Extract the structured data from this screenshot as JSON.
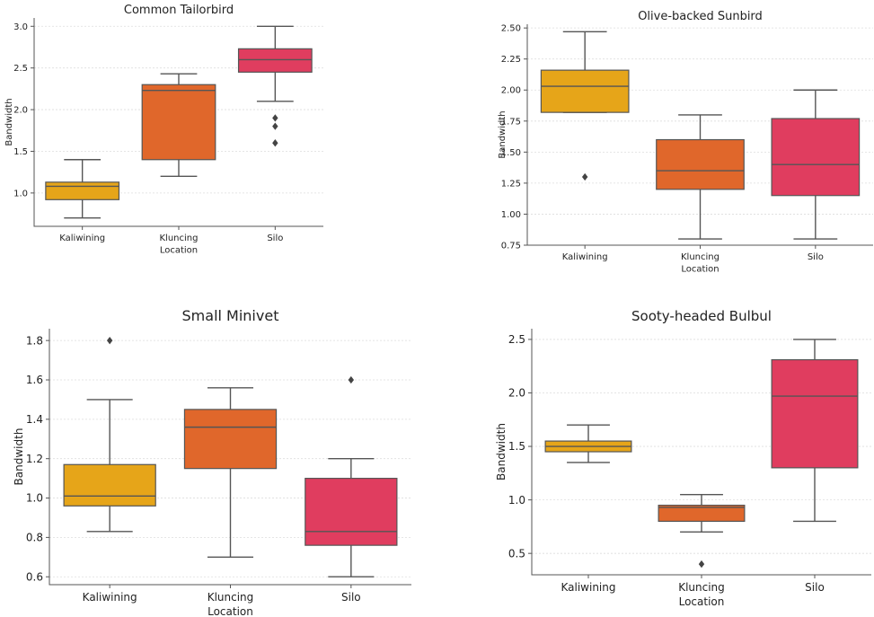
{
  "figure": {
    "palette": {
      "Kaliwining": "#E6A519",
      "Kluncing": "#E0672B",
      "Silo": "#E03D5F"
    }
  },
  "chart_data": [
    {
      "type": "box",
      "title": "Common Tailorbird",
      "xlabel": "Location",
      "ylabel": "Bandwidth",
      "ylim": [
        0.6,
        3.1
      ],
      "yticks": [
        "1.0",
        "1.5",
        "2.0",
        "2.5",
        "3.0"
      ],
      "ytick_values": [
        1.0,
        1.5,
        2.0,
        2.5,
        3.0
      ],
      "grid": true,
      "categories": [
        "Kaliwining",
        "Kluncing",
        "Silo"
      ],
      "boxes": [
        {
          "min": 0.7,
          "q1": 0.92,
          "median": 1.08,
          "q3": 1.13,
          "max": 1.4,
          "outliers": []
        },
        {
          "min": 1.2,
          "q1": 1.4,
          "median": 2.23,
          "q3": 2.3,
          "max": 2.43,
          "outliers": []
        },
        {
          "min": 2.1,
          "q1": 2.45,
          "median": 2.6,
          "q3": 2.73,
          "max": 3.0,
          "outliers": [
            1.6,
            1.8,
            1.9
          ]
        }
      ]
    },
    {
      "type": "box",
      "title": "Olive-backed Sunbird",
      "xlabel": "Location",
      "ylabel": "Bandwidth",
      "ylim": [
        0.75,
        2.53
      ],
      "yticks": [
        "0.75",
        "1.00",
        "1.25",
        "1.50",
        "1.75",
        "2.00",
        "2.25",
        "2.50"
      ],
      "ytick_values": [
        0.75,
        1.0,
        1.25,
        1.5,
        1.75,
        2.0,
        2.25,
        2.5
      ],
      "grid": true,
      "categories": [
        "Kaliwining",
        "Kluncing",
        "Silo"
      ],
      "boxes": [
        {
          "min": 1.82,
          "q1": 1.82,
          "median": 2.03,
          "q3": 2.16,
          "max": 2.47,
          "outliers": [
            1.3
          ]
        },
        {
          "min": 0.8,
          "q1": 1.2,
          "median": 1.35,
          "q3": 1.6,
          "max": 1.8,
          "outliers": []
        },
        {
          "min": 0.8,
          "q1": 1.15,
          "median": 1.4,
          "q3": 1.77,
          "max": 2.0,
          "outliers": []
        }
      ]
    },
    {
      "type": "box",
      "title": "Small Minivet",
      "xlabel": "Location",
      "ylabel": "Bandwidth",
      "ylim": [
        0.56,
        1.86
      ],
      "yticks": [
        "0.6",
        "0.8",
        "1.0",
        "1.2",
        "1.4",
        "1.6",
        "1.8"
      ],
      "ytick_values": [
        0.6,
        0.8,
        1.0,
        1.2,
        1.4,
        1.6,
        1.8
      ],
      "grid": true,
      "categories": [
        "Kaliwining",
        "Kluncing",
        "Silo"
      ],
      "boxes": [
        {
          "min": 0.83,
          "q1": 0.96,
          "median": 1.01,
          "q3": 1.17,
          "max": 1.5,
          "outliers": [
            1.8
          ]
        },
        {
          "min": 0.7,
          "q1": 1.15,
          "median": 1.36,
          "q3": 1.45,
          "max": 1.56,
          "outliers": []
        },
        {
          "min": 0.6,
          "q1": 0.76,
          "median": 0.83,
          "q3": 1.1,
          "max": 1.2,
          "outliers": [
            1.6
          ]
        }
      ]
    },
    {
      "type": "box",
      "title": "Sooty-headed Bulbul",
      "xlabel": "Location",
      "ylabel": "Bandwidth",
      "ylim": [
        0.3,
        2.6
      ],
      "yticks": [
        "0.5",
        "1.0",
        "1.5",
        "2.0",
        "2.5"
      ],
      "ytick_values": [
        0.5,
        1.0,
        1.5,
        2.0,
        2.5
      ],
      "grid": true,
      "categories": [
        "Kaliwining",
        "Kluncing",
        "Silo"
      ],
      "boxes": [
        {
          "min": 1.35,
          "q1": 1.45,
          "median": 1.5,
          "q3": 1.55,
          "max": 1.7,
          "outliers": []
        },
        {
          "min": 0.7,
          "q1": 0.8,
          "median": 0.93,
          "q3": 0.95,
          "max": 1.05,
          "outliers": [
            0.4
          ]
        },
        {
          "min": 0.8,
          "q1": 1.3,
          "median": 1.97,
          "q3": 2.31,
          "max": 2.5,
          "outliers": []
        }
      ]
    }
  ]
}
